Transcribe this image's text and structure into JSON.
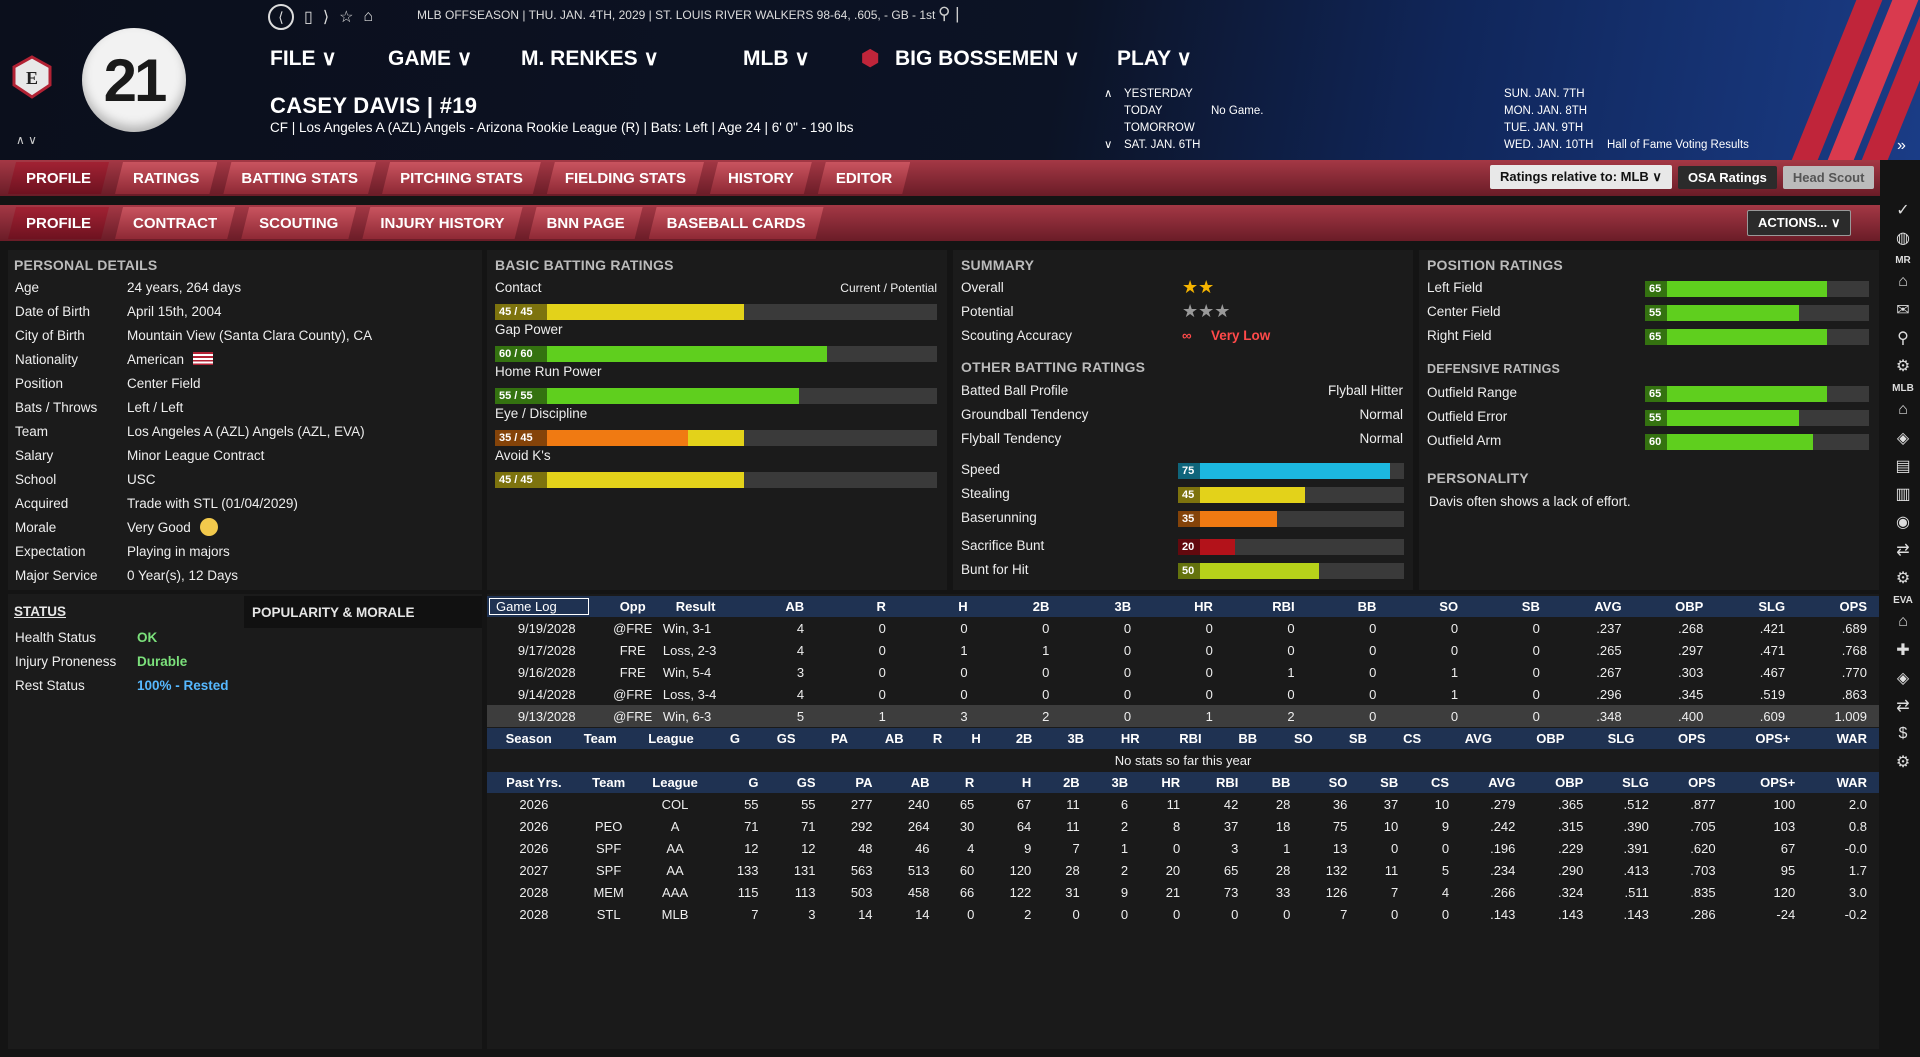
{
  "topbar": {
    "player_number": "21",
    "info_line": "MLB OFFSEASON  |  THU. JAN. 4TH, 2029  |  ST. LOUIS RIVER WALKERS   98-64, .605, - GB - 1st",
    "menus": [
      "FILE ∨",
      "GAME ∨",
      "M. RENKES ∨",
      "MLB ∨",
      "BIG BOSSEMEN ∨",
      "PLAY ∨"
    ],
    "player_name": "CASEY DAVIS  |  #19",
    "player_sub": "CF | Los Angeles A (AZL) Angels - Arizona Rookie League (R) | Bats: Left | Age 24 | 6' 0\" - 190 lbs",
    "schedule_left": [
      "YESTERDAY",
      "TODAY",
      "TOMORROW",
      "SAT. JAN. 6TH"
    ],
    "schedule_today_note": "No Game.",
    "schedule_right": [
      "SUN. JAN. 7TH",
      "MON. JAN. 8TH",
      "TUE. JAN. 9TH",
      "WED. JAN. 10TH"
    ],
    "schedule_right_note": "Hall of Fame Voting Results"
  },
  "tabs1": [
    "PROFILE",
    "RATINGS",
    "BATTING STATS",
    "PITCHING STATS",
    "FIELDING STATS",
    "HISTORY",
    "EDITOR"
  ],
  "tabs2": [
    "PROFILE",
    "CONTRACT",
    "SCOUTING",
    "INJURY HISTORY",
    "BNN PAGE",
    "BASEBALL CARDS"
  ],
  "controls": {
    "relative": "Ratings relative to: MLB  ∨",
    "osa": "OSA Ratings",
    "scout": "Head Scout",
    "actions": "ACTIONS...  ∨"
  },
  "personal": {
    "title": "PERSONAL DETAILS",
    "rows": [
      {
        "k": "Age",
        "v": "24 years, 264 days"
      },
      {
        "k": "Date of Birth",
        "v": "April 15th, 2004"
      },
      {
        "k": "City of Birth",
        "v": "Mountain View (Santa Clara County), CA"
      },
      {
        "k": "Nationality",
        "v": "American"
      },
      {
        "k": "Position",
        "v": "Center Field"
      },
      {
        "k": "Bats / Throws",
        "v": "Left / Left"
      },
      {
        "k": "Team",
        "v": "Los Angeles A (AZL) Angels (AZL, EVA)"
      },
      {
        "k": "Salary",
        "v": "Minor League Contract"
      },
      {
        "k": "School",
        "v": "USC"
      },
      {
        "k": "Acquired",
        "v": "Trade with STL (01/04/2029)"
      },
      {
        "k": "Morale",
        "v": "Very Good"
      },
      {
        "k": "Expectation",
        "v": "Playing in majors"
      },
      {
        "k": "Major Service",
        "v": "0 Year(s), 12 Days"
      }
    ]
  },
  "status": {
    "title": "STATUS",
    "pop_title": "POPULARITY & MORALE",
    "rows": [
      {
        "k": "Health Status",
        "v": "OK"
      },
      {
        "k": "Injury Proneness",
        "v": "Durable"
      },
      {
        "k": "Rest Status",
        "v": "100% - Rested"
      }
    ]
  },
  "batting": {
    "title": "BASIC BATTING RATINGS",
    "cp": "Current / Potential",
    "items": [
      {
        "label": "Contact",
        "text": "45 / 45",
        "cur": 45,
        "pot": 45,
        "color": "#e3d21a"
      },
      {
        "label": "Gap Power",
        "text": "60 / 60",
        "cur": 60,
        "pot": 60,
        "color": "#5fcf1e"
      },
      {
        "label": "Home Run Power",
        "text": "55 / 55",
        "cur": 55,
        "pot": 55,
        "color": "#5fcf1e"
      },
      {
        "label": "Eye / Discipline",
        "text": "35 / 45",
        "cur": 35,
        "pot": 45,
        "color": "#f07a12"
      },
      {
        "label": "Avoid K's",
        "text": "45 / 45",
        "cur": 45,
        "pot": 45,
        "color": "#e3d21a"
      }
    ]
  },
  "summary": {
    "title": "SUMMARY",
    "overall_label": "Overall",
    "overall_stars": "★★",
    "potential_label": "Potential",
    "potential_stars": "★★★",
    "accuracy_label": "Scouting Accuracy",
    "accuracy": "Very Low",
    "other_title": "OTHER BATTING RATINGS",
    "other": [
      {
        "k": "Batted Ball Profile",
        "v": "Flyball Hitter"
      },
      {
        "k": "Groundball Tendency",
        "v": "Normal"
      },
      {
        "k": "Flyball Tendency",
        "v": "Normal"
      }
    ],
    "speed": [
      {
        "label": "Speed",
        "value": 75,
        "color": "#1cb8e0"
      },
      {
        "label": "Stealing",
        "value": 45,
        "color": "#e3d21a"
      },
      {
        "label": "Baserunning",
        "value": 35,
        "color": "#f07a12"
      },
      {
        "label": "Sacrifice Bunt",
        "value": 20,
        "color": "#b3121a"
      },
      {
        "label": "Bunt for Hit",
        "value": 50,
        "color": "#b7d21a"
      }
    ]
  },
  "position": {
    "title": "POSITION RATINGS",
    "items": [
      {
        "label": "Left Field",
        "value": 65
      },
      {
        "label": "Center Field",
        "value": 55
      },
      {
        "label": "Right Field",
        "value": 65
      }
    ],
    "def_title": "DEFENSIVE RATINGS",
    "def": [
      {
        "label": "Outfield Range",
        "value": 65
      },
      {
        "label": "Outfield Error",
        "value": 55
      },
      {
        "label": "Outfield Arm",
        "value": 60
      }
    ],
    "pers_title": "PERSONALITY",
    "pers_text": "Davis often shows a lack of effort."
  },
  "gamelog": {
    "select": "Game Log",
    "headers": [
      "Opp",
      "Result",
      "AB",
      "R",
      "H",
      "2B",
      "3B",
      "HR",
      "RBI",
      "BB",
      "SO",
      "SB",
      "AVG",
      "OBP",
      "SLG",
      "OPS"
    ],
    "rows": [
      [
        "9/19/2028",
        "@FRE",
        "Win, 3-1",
        "4",
        "0",
        "0",
        "0",
        "0",
        "0",
        "0",
        "0",
        "0",
        "0",
        ".237",
        ".268",
        ".421",
        ".689"
      ],
      [
        "9/17/2028",
        "FRE",
        "Loss, 2-3",
        "4",
        "0",
        "1",
        "1",
        "0",
        "0",
        "0",
        "0",
        "0",
        "0",
        ".265",
        ".297",
        ".471",
        ".768"
      ],
      [
        "9/16/2028",
        "FRE",
        "Win, 5-4",
        "3",
        "0",
        "0",
        "0",
        "0",
        "0",
        "1",
        "0",
        "1",
        "0",
        ".267",
        ".303",
        ".467",
        ".770"
      ],
      [
        "9/14/2028",
        "@FRE",
        "Loss, 3-4",
        "4",
        "0",
        "0",
        "0",
        "0",
        "0",
        "0",
        "0",
        "1",
        "0",
        ".296",
        ".345",
        ".519",
        ".863"
      ],
      [
        "9/13/2028",
        "@FRE",
        "Win, 6-3",
        "5",
        "1",
        "3",
        "2",
        "0",
        "1",
        "2",
        "0",
        "0",
        "0",
        ".348",
        ".400",
        ".609",
        "1.009"
      ]
    ]
  },
  "season": {
    "headers": [
      "Season",
      "Team",
      "League",
      "G",
      "GS",
      "PA",
      "AB",
      "R",
      "H",
      "2B",
      "3B",
      "HR",
      "RBI",
      "BB",
      "SO",
      "SB",
      "CS",
      "AVG",
      "OBP",
      "SLG",
      "OPS",
      "OPS+",
      "WAR"
    ],
    "empty": "No stats so far this year"
  },
  "past": {
    "headers": [
      "Past Yrs.",
      "Team",
      "League",
      "G",
      "GS",
      "PA",
      "AB",
      "R",
      "H",
      "2B",
      "3B",
      "HR",
      "RBI",
      "BB",
      "SO",
      "SB",
      "CS",
      "AVG",
      "OBP",
      "SLG",
      "OPS",
      "OPS+",
      "WAR"
    ],
    "rows": [
      [
        "2026",
        "",
        "COL",
        "55",
        "55",
        "277",
        "240",
        "65",
        "67",
        "11",
        "6",
        "11",
        "42",
        "28",
        "36",
        "37",
        "10",
        ".279",
        ".365",
        ".512",
        ".877",
        "100",
        "2.0"
      ],
      [
        "2026",
        "PEO",
        "A",
        "71",
        "71",
        "292",
        "264",
        "30",
        "64",
        "11",
        "2",
        "8",
        "37",
        "18",
        "75",
        "10",
        "9",
        ".242",
        ".315",
        ".390",
        ".705",
        "103",
        "0.8"
      ],
      [
        "2026",
        "SPF",
        "AA",
        "12",
        "12",
        "48",
        "46",
        "4",
        "9",
        "7",
        "1",
        "0",
        "3",
        "1",
        "13",
        "0",
        "0",
        ".196",
        ".229",
        ".391",
        ".620",
        "67",
        "-0.0"
      ],
      [
        "2027",
        "SPF",
        "AA",
        "133",
        "131",
        "563",
        "513",
        "60",
        "120",
        "28",
        "2",
        "20",
        "65",
        "28",
        "132",
        "11",
        "5",
        ".234",
        ".290",
        ".413",
        ".703",
        "95",
        "1.7"
      ],
      [
        "2028",
        "MEM",
        "AAA",
        "115",
        "113",
        "503",
        "458",
        "66",
        "122",
        "31",
        "9",
        "21",
        "73",
        "33",
        "126",
        "7",
        "4",
        ".266",
        ".324",
        ".511",
        ".835",
        "120",
        "3.0"
      ],
      [
        "2028",
        "STL",
        "MLB",
        "7",
        "3",
        "14",
        "14",
        "0",
        "2",
        "0",
        "0",
        "0",
        "0",
        "0",
        "7",
        "0",
        "0",
        ".143",
        ".143",
        ".143",
        ".286",
        "-24",
        "-0.2"
      ]
    ]
  },
  "sidebar": {
    "labels": [
      "MR",
      "MLB",
      "EVA"
    ]
  }
}
